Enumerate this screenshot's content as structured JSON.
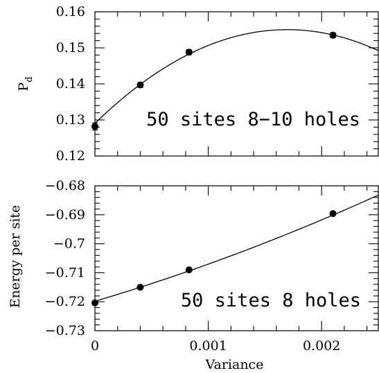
{
  "chart_data": [
    {
      "type": "scatter",
      "xlim": [
        0,
        0.0025
      ],
      "ylim": [
        0.12,
        0.16
      ],
      "ylabel_main": "P",
      "ylabel_sub": "d",
      "xlabel": "",
      "annotation": "50 sites 8−10 holes",
      "y_ticks": [
        0.12,
        0.13,
        0.14,
        0.15,
        0.16
      ],
      "y_tick_labels": [
        "0.12",
        "0.13",
        "0.14",
        "0.15",
        "0.16"
      ],
      "x_ticks": [
        0,
        0.001,
        0.002
      ],
      "x_tick_labels": [],
      "grid": false,
      "series": [
        {
          "points": [
            {
              "x": 0.0,
              "y": 0.1282,
              "err": 0.001
            },
            {
              "x": 0.0004,
              "y": 0.1397,
              "err": 0.0007
            },
            {
              "x": 0.00083,
              "y": 0.1488,
              "err": 0.0007
            },
            {
              "x": 0.0021,
              "y": 0.1535,
              "err": 0.0007
            }
          ]
        }
      ],
      "fit_curve": {
        "type": "quadratic",
        "x": [
          0,
          0.0004,
          0.0008,
          0.0012,
          0.0016,
          0.002,
          0.0025
        ],
        "y": [
          0.1295,
          0.1394,
          0.1475,
          0.1525,
          0.1553,
          0.155,
          0.1487
        ]
      }
    },
    {
      "type": "scatter",
      "xlim": [
        0,
        0.0025
      ],
      "ylim": [
        -0.73,
        -0.68
      ],
      "ylabel": "Energy per site",
      "xlabel": "Variance",
      "annotation": "50 sites 8 holes",
      "y_ticks": [
        -0.73,
        -0.72,
        -0.71,
        -0.7,
        -0.69,
        -0.68
      ],
      "y_tick_labels": [
        "−0.73",
        "−0.72",
        "−0.71",
        "−0.7",
        "−0.69",
        "−0.68"
      ],
      "x_ticks": [
        0,
        0.001,
        0.002
      ],
      "x_tick_labels": [
        "0",
        "0.001",
        "0.002"
      ],
      "grid": false,
      "series": [
        {
          "points": [
            {
              "x": 0.0,
              "y": -0.7204,
              "err": 0.0003
            },
            {
              "x": 0.0004,
              "y": -0.715,
              "err": 0.0003
            },
            {
              "x": 0.00083,
              "y": -0.709,
              "err": 0.0003
            },
            {
              "x": 0.0021,
              "y": -0.6896,
              "err": 0.0004
            }
          ]
        }
      ],
      "fit_curve": {
        "type": "quadratic",
        "x": [
          0,
          0.0004,
          0.0008,
          0.0012,
          0.0016,
          0.002,
          0.0025
        ],
        "y": [
          -0.72,
          -0.7149,
          -0.7096,
          -0.704,
          -0.6984,
          -0.692,
          -0.683
        ]
      }
    }
  ]
}
